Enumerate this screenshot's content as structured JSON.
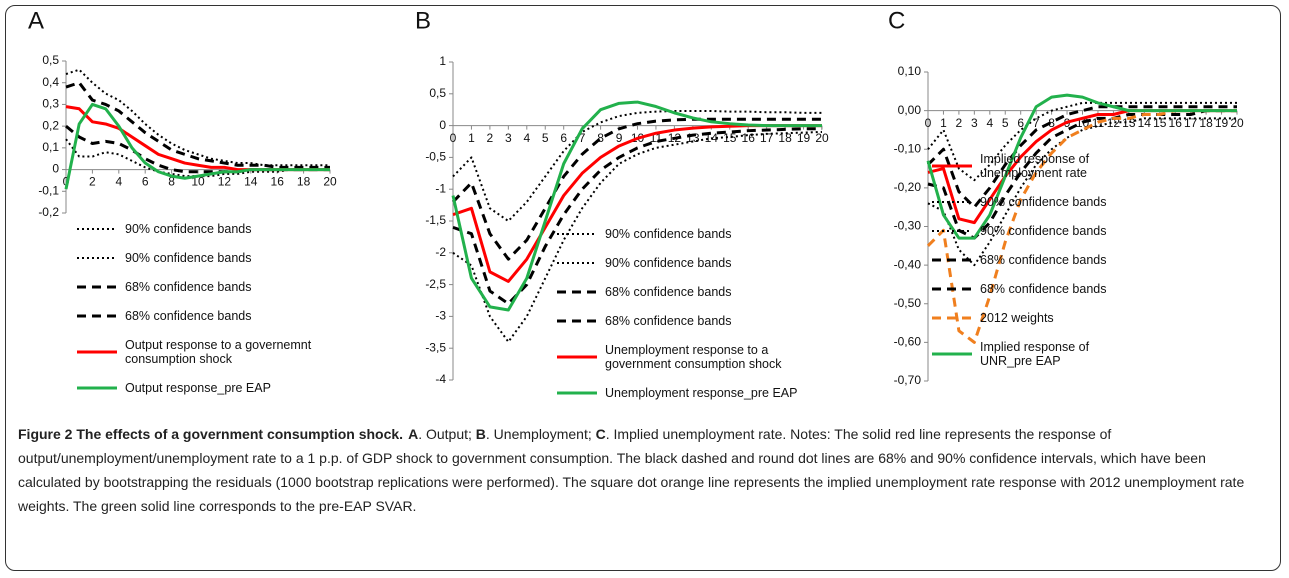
{
  "chart_data": [
    {
      "type": "line",
      "panel": "A",
      "x": [
        0,
        1,
        2,
        3,
        4,
        5,
        6,
        7,
        8,
        9,
        10,
        11,
        12,
        13,
        14,
        15,
        16,
        17,
        18,
        19,
        20
      ],
      "xlim": [
        0,
        20
      ],
      "xticks": [
        0,
        2,
        4,
        6,
        8,
        10,
        12,
        14,
        16,
        18,
        20
      ],
      "ylim": [
        -0.2,
        0.5
      ],
      "yticks": [
        {
          "value": -0.2,
          "label": "-0,2"
        },
        {
          "value": -0.1,
          "label": "-0,1"
        },
        0,
        {
          "value": 0.1,
          "label": "0,1"
        },
        {
          "value": 0.2,
          "label": "0,2"
        },
        {
          "value": 0.3,
          "label": "0,3"
        },
        {
          "value": 0.4,
          "label": "0,4"
        },
        {
          "value": 0.5,
          "label": "0,5"
        }
      ],
      "series": [
        {
          "name": "90% confidence bands",
          "color": "#000000",
          "style": "dotted",
          "values": [
            0.44,
            0.46,
            0.4,
            0.35,
            0.32,
            0.27,
            0.21,
            0.16,
            0.12,
            0.09,
            0.07,
            0.05,
            0.04,
            0.03,
            0.03,
            0.02,
            0.02,
            0.02,
            0.02,
            0.02,
            0.02
          ]
        },
        {
          "name": "90% confidence bands",
          "color": "#000000",
          "style": "dotted",
          "values": [
            0.14,
            0.06,
            0.06,
            0.08,
            0.07,
            0.04,
            0.01,
            -0.01,
            -0.02,
            -0.03,
            -0.03,
            -0.03,
            -0.02,
            -0.02,
            -0.01,
            -0.01,
            -0.01,
            0,
            0,
            0,
            0
          ]
        },
        {
          "name": "68% confidence bands",
          "color": "#000000",
          "style": "dashed",
          "values": [
            0.38,
            0.4,
            0.32,
            0.3,
            0.27,
            0.22,
            0.17,
            0.13,
            0.09,
            0.07,
            0.05,
            0.04,
            0.03,
            0.02,
            0.02,
            0.02,
            0.01,
            0.01,
            0.01,
            0.01,
            0.01
          ]
        },
        {
          "name": "68% confidence bands",
          "color": "#000000",
          "style": "dashed",
          "values": [
            0.2,
            0.15,
            0.12,
            0.13,
            0.12,
            0.09,
            0.05,
            0.02,
            0,
            -0.01,
            -0.01,
            -0.01,
            -0.01,
            -0.01,
            0,
            0,
            0,
            0,
            0,
            0,
            0
          ]
        },
        {
          "name": "Output response to a governemnt consumption shock",
          "color": "#ff0000",
          "style": "solid",
          "values": [
            0.29,
            0.28,
            0.22,
            0.21,
            0.19,
            0.15,
            0.11,
            0.07,
            0.05,
            0.03,
            0.02,
            0.01,
            0.01,
            0,
            0,
            0,
            0,
            0,
            0,
            0,
            0
          ]
        },
        {
          "name": "Output response_pre EAP",
          "color": "#22b14c",
          "style": "solid",
          "values": [
            -0.09,
            0.21,
            0.3,
            0.28,
            0.2,
            0.1,
            0.03,
            -0.01,
            -0.03,
            -0.04,
            -0.03,
            -0.02,
            -0.01,
            -0.01,
            0,
            0,
            0,
            0,
            0,
            0,
            0
          ]
        }
      ]
    },
    {
      "type": "line",
      "panel": "B",
      "x": [
        0,
        1,
        2,
        3,
        4,
        5,
        6,
        7,
        8,
        9,
        10,
        11,
        12,
        13,
        14,
        15,
        16,
        17,
        18,
        19,
        20
      ],
      "xlim": [
        0,
        20
      ],
      "xticks": [
        0,
        1,
        2,
        3,
        4,
        5,
        6,
        7,
        8,
        9,
        10,
        11,
        12,
        13,
        14,
        15,
        16,
        17,
        18,
        19,
        20
      ],
      "ylim": [
        -4,
        1
      ],
      "yticks": [
        -4,
        {
          "value": -3.5,
          "label": "-3,5"
        },
        -3,
        {
          "value": -2.5,
          "label": "-2,5"
        },
        -2,
        {
          "value": -1.5,
          "label": "-1,5"
        },
        -1,
        {
          "value": -0.5,
          "label": "-0,5"
        },
        0,
        {
          "value": 0.5,
          "label": "0,5"
        },
        1
      ],
      "series": [
        {
          "name": "90% confidence bands",
          "color": "#000000",
          "style": "dotted",
          "values": [
            -0.8,
            -0.5,
            -1.3,
            -1.5,
            -1.2,
            -0.8,
            -0.4,
            -0.1,
            0.05,
            0.15,
            0.2,
            0.22,
            0.23,
            0.23,
            0.23,
            0.22,
            0.22,
            0.21,
            0.21,
            0.2,
            0.2
          ]
        },
        {
          "name": "90% confidence bands",
          "color": "#000000",
          "style": "dotted",
          "values": [
            -2.0,
            -2.2,
            -3.0,
            -3.4,
            -3.0,
            -2.4,
            -1.8,
            -1.3,
            -0.9,
            -0.6,
            -0.45,
            -0.35,
            -0.3,
            -0.25,
            -0.2,
            -0.18,
            -0.15,
            -0.13,
            -0.12,
            -0.11,
            -0.1
          ]
        },
        {
          "name": "68% confidence bands",
          "color": "#000000",
          "style": "dashed",
          "values": [
            -1.2,
            -0.9,
            -1.7,
            -2.1,
            -1.8,
            -1.3,
            -0.8,
            -0.45,
            -0.2,
            -0.05,
            0.03,
            0.07,
            0.09,
            0.1,
            0.1,
            0.1,
            0.1,
            0.1,
            0.1,
            0.1,
            0.1
          ]
        },
        {
          "name": "68% confidence bands",
          "color": "#000000",
          "style": "dashed",
          "values": [
            -1.6,
            -1.7,
            -2.6,
            -2.8,
            -2.5,
            -1.9,
            -1.4,
            -1.0,
            -0.7,
            -0.5,
            -0.35,
            -0.25,
            -0.2,
            -0.15,
            -0.12,
            -0.1,
            -0.08,
            -0.07,
            -0.06,
            -0.05,
            -0.05
          ]
        },
        {
          "name": "Unemployment response to a government consumption shock",
          "color": "#ff0000",
          "style": "solid",
          "values": [
            -1.4,
            -1.3,
            -2.3,
            -2.45,
            -2.1,
            -1.6,
            -1.1,
            -0.75,
            -0.5,
            -0.32,
            -0.2,
            -0.12,
            -0.07,
            -0.04,
            -0.02,
            -0.01,
            0,
            0,
            0,
            0,
            0
          ]
        },
        {
          "name": "Unemployment response_pre EAP",
          "color": "#22b14c",
          "style": "solid",
          "values": [
            -1.1,
            -2.4,
            -2.85,
            -2.9,
            -2.4,
            -1.5,
            -0.6,
            -0.05,
            0.25,
            0.35,
            0.37,
            0.3,
            0.2,
            0.12,
            0.06,
            0.03,
            0.01,
            0,
            0,
            0,
            0
          ]
        }
      ]
    },
    {
      "type": "line",
      "panel": "C",
      "x": [
        0,
        1,
        2,
        3,
        4,
        5,
        6,
        7,
        8,
        9,
        10,
        11,
        12,
        13,
        14,
        15,
        16,
        17,
        18,
        19,
        20
      ],
      "xlim": [
        0,
        20
      ],
      "xticks": [
        0,
        1,
        2,
        3,
        4,
        5,
        6,
        7,
        8,
        9,
        10,
        11,
        12,
        13,
        14,
        15,
        16,
        17,
        18,
        19,
        20
      ],
      "ylim": [
        -0.7,
        0.1
      ],
      "yticks": [
        {
          "value": -0.7,
          "label": "-0,70"
        },
        {
          "value": -0.6,
          "label": "-0,60"
        },
        {
          "value": -0.5,
          "label": "-0,50"
        },
        {
          "value": -0.4,
          "label": "-0,40"
        },
        {
          "value": -0.3,
          "label": "-0,30"
        },
        {
          "value": -0.2,
          "label": "-0,20"
        },
        {
          "value": -0.1,
          "label": "-0,10"
        },
        {
          "value": 0,
          "label": "0,00"
        },
        {
          "value": 0.1,
          "label": "0,10"
        }
      ],
      "series": [
        {
          "name": "Implied response of unemployment rate",
          "color": "#ff0000",
          "style": "solid",
          "values": [
            -0.16,
            -0.15,
            -0.28,
            -0.29,
            -0.23,
            -0.17,
            -0.12,
            -0.08,
            -0.05,
            -0.03,
            -0.02,
            -0.01,
            -0.01,
            0,
            0,
            0,
            0,
            0,
            0,
            0,
            0
          ]
        },
        {
          "name": "90% confidence bands",
          "color": "#000000",
          "style": "dotted",
          "values": [
            -0.1,
            -0.05,
            -0.15,
            -0.18,
            -0.14,
            -0.09,
            -0.05,
            -0.02,
            0,
            0.01,
            0.02,
            0.02,
            0.02,
            0.02,
            0.02,
            0.02,
            0.02,
            0.02,
            0.02,
            0.02,
            0.02
          ]
        },
        {
          "name": "90% confidence bands",
          "color": "#000000",
          "style": "dotted",
          "values": [
            -0.24,
            -0.26,
            -0.36,
            -0.4,
            -0.34,
            -0.27,
            -0.2,
            -0.14,
            -0.1,
            -0.07,
            -0.05,
            -0.04,
            -0.03,
            -0.03,
            -0.02,
            -0.02,
            -0.02,
            -0.02,
            -0.02,
            -0.02,
            -0.02
          ]
        },
        {
          "name": "68% confidence bands",
          "color": "#000000",
          "style": "dashed",
          "values": [
            -0.14,
            -0.1,
            -0.21,
            -0.25,
            -0.2,
            -0.14,
            -0.09,
            -0.05,
            -0.03,
            -0.01,
            0,
            0.01,
            0.01,
            0.01,
            0.01,
            0.01,
            0.01,
            0.01,
            0.01,
            0.01,
            0.01
          ]
        },
        {
          "name": "68% confidence bands",
          "color": "#000000",
          "style": "dashed",
          "values": [
            -0.19,
            -0.2,
            -0.31,
            -0.33,
            -0.29,
            -0.22,
            -0.16,
            -0.11,
            -0.07,
            -0.05,
            -0.03,
            -0.02,
            -0.02,
            -0.01,
            -0.01,
            -0.01,
            -0.01,
            -0.01,
            0,
            0,
            0
          ]
        },
        {
          "name": "2012 weights",
          "color": "#f07f1e",
          "style": "dashed",
          "values": [
            -0.35,
            -0.31,
            -0.57,
            -0.6,
            -0.48,
            -0.34,
            -0.23,
            -0.16,
            -0.11,
            -0.07,
            -0.05,
            -0.03,
            -0.02,
            -0.02,
            -0.01,
            -0.01,
            0,
            0,
            0,
            0,
            0
          ]
        },
        {
          "name": "Implied response of UNR_pre EAP",
          "color": "#22b14c",
          "style": "solid",
          "values": [
            -0.13,
            -0.27,
            -0.33,
            -0.33,
            -0.27,
            -0.17,
            -0.07,
            0.01,
            0.035,
            0.04,
            0.035,
            0.02,
            0.01,
            0,
            0,
            0,
            0,
            0,
            0,
            0,
            0
          ]
        }
      ]
    }
  ],
  "caption": [
    {
      "text": "Figure 2 The effects of a government consumption shock.",
      "bold": true
    },
    {
      "text": "A",
      "bold": true
    },
    {
      "text": ". Output; ",
      "bold": false
    },
    {
      "text": "B",
      "bold": true
    },
    {
      "text": ". Unemployment; ",
      "bold": false
    },
    {
      "text": "C",
      "bold": true
    },
    {
      "text": ". Implied unemployment rate. Notes: The solid red line represents the response of output/unemployment/unemployment rate to a 1 p.p. of GDP shock to government consumption. The black dashed and round dot lines are 68% and 90% confidence intervals, which have been calculated by bootstrapping the residuals (1000 bootstrap replications were performed). The square dot orange line represents the implied unemployment rate response with 2012 unemployment rate weights. The green solid line corresponds to the pre-EAP SVAR.",
      "bold": false
    }
  ]
}
